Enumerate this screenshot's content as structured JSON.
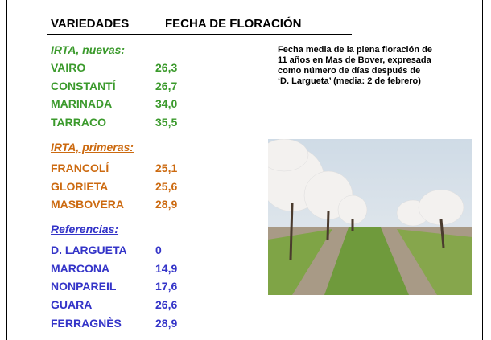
{
  "header": {
    "col1": "VARIEDADES",
    "col2": "FECHA DE FLORACIÓN"
  },
  "groups": [
    {
      "title": "IRTA, nuevas:",
      "rows": [
        [
          "VAIRO",
          "26,3"
        ],
        [
          "CONSTANTÍ",
          "26,7"
        ],
        [
          "MARINADA",
          "34,0"
        ],
        [
          "TARRACO",
          "35,5"
        ]
      ]
    },
    {
      "title": "IRTA, primeras:",
      "rows": [
        [
          "FRANCOLÍ",
          "25,1"
        ],
        [
          "GLORIETA",
          "25,6"
        ],
        [
          "MASBOVERA",
          "28,9"
        ]
      ]
    },
    {
      "title": "Referencias:",
      "rows": [
        [
          "D. LARGUETA",
          "0"
        ],
        [
          "MARCONA",
          "14,9"
        ],
        [
          "NONPAREIL",
          "17,6"
        ],
        [
          "GUARA",
          "26,6"
        ],
        [
          "FERRAGNÈS",
          "28,9"
        ]
      ]
    }
  ],
  "note": {
    "lines": [
      "Fecha media de la plena floración de",
      "11 años en Mas de Bover, expresada",
      "como número de días después de",
      "‘D. Largueta’ (media: 2 de febrero)"
    ]
  }
}
